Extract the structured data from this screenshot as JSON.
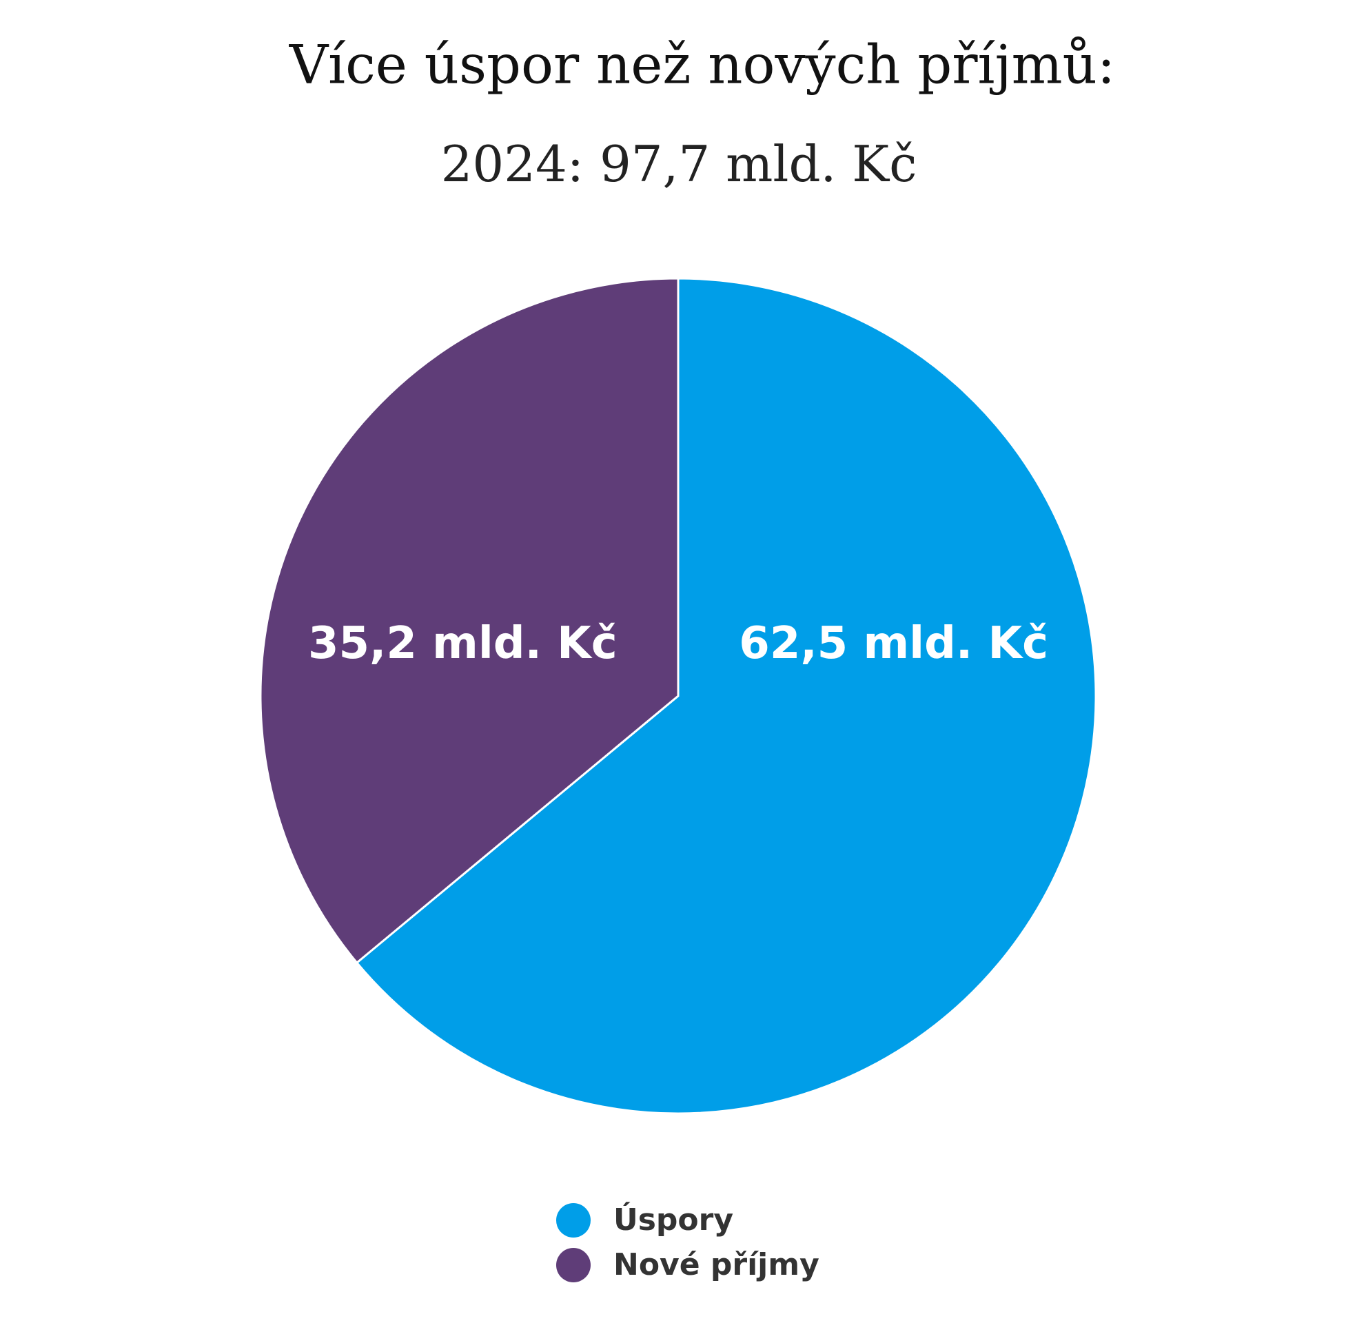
{
  "chart_data": {
    "type": "pie",
    "title": "Více úspor než nových příjmů:",
    "subtitle": "2024: 97,7 mld. Kč",
    "categories": [
      "Úspory",
      "Nové příjmy"
    ],
    "values": [
      62.5,
      35.2
    ],
    "value_labels": [
      "62,5 mld. Kč",
      "35,2 mld. Kč"
    ],
    "colors": [
      "#009ee8",
      "#5f3d78"
    ]
  }
}
